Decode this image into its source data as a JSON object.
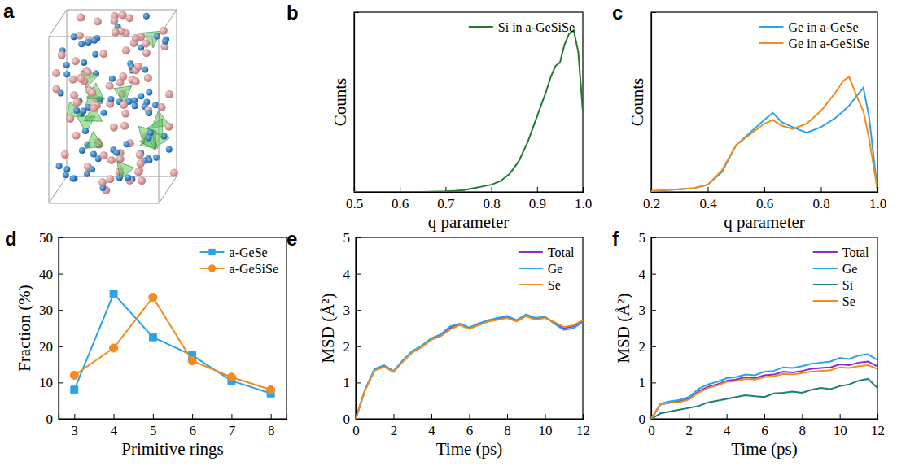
{
  "chart_data": [
    {
      "panel": "a",
      "type": "illustration"
    },
    {
      "panel": "b",
      "type": "line",
      "xlabel": "q parameter",
      "ylabel": "Counts",
      "x": [
        0.5,
        0.55,
        0.6,
        0.65,
        0.7,
        0.72,
        0.74,
        0.76,
        0.78,
        0.8,
        0.82,
        0.84,
        0.86,
        0.88,
        0.9,
        0.92,
        0.93,
        0.94,
        0.95,
        0.96,
        0.97,
        0.98,
        0.99,
        1.0
      ],
      "series": [
        {
          "name": "Si in a-GeSiSe",
          "color": "#237a2e",
          "values": [
            0,
            0,
            0,
            0,
            0.003,
            0.006,
            0.01,
            0.02,
            0.03,
            0.04,
            0.06,
            0.1,
            0.17,
            0.28,
            0.42,
            0.56,
            0.64,
            0.7,
            0.72,
            0.82,
            0.88,
            0.9,
            0.78,
            0.45
          ]
        }
      ],
      "xlim": [
        0.5,
        1.0
      ],
      "ylim": [
        0,
        1
      ],
      "xticks": [
        0.5,
        0.6,
        0.7,
        0.8,
        0.9,
        {
          "value": 1,
          "label": "1.0"
        }
      ],
      "yticks": [],
      "tick_labels": "x",
      "legend": "upper right",
      "grid": false
    },
    {
      "panel": "c",
      "type": "line",
      "xlabel": "q parameter",
      "ylabel": "Counts",
      "x": [
        0.2,
        0.25,
        0.3,
        0.35,
        0.4,
        0.45,
        0.5,
        0.55,
        0.6,
        0.63,
        0.66,
        0.7,
        0.75,
        0.8,
        0.85,
        0.88,
        0.9,
        0.93,
        0.95,
        0.97,
        1.0
      ],
      "series": [
        {
          "name": "Ge in a-GeSe",
          "color": "#2aa3e8",
          "values": [
            0.005,
            0.01,
            0.015,
            0.02,
            0.04,
            0.11,
            0.26,
            0.33,
            0.4,
            0.44,
            0.39,
            0.36,
            0.33,
            0.36,
            0.41,
            0.45,
            0.48,
            0.54,
            0.58,
            0.42,
            0.01
          ]
        },
        {
          "name": "Ge in a-GeSiSe",
          "color": "#f28c1e",
          "values": [
            0.005,
            0.01,
            0.015,
            0.02,
            0.04,
            0.12,
            0.26,
            0.32,
            0.38,
            0.4,
            0.37,
            0.35,
            0.38,
            0.45,
            0.55,
            0.62,
            0.64,
            0.52,
            0.45,
            0.3,
            0.01
          ]
        }
      ],
      "xlim": [
        0.2,
        1.0
      ],
      "ylim": [
        0,
        1
      ],
      "xticks": [
        0.2,
        0.4,
        0.6,
        0.8,
        {
          "value": 1,
          "label": "1.0"
        }
      ],
      "yticks": [],
      "tick_labels": "x",
      "legend": "upper right",
      "grid": false
    },
    {
      "panel": "d",
      "type": "line",
      "xlabel": "Primitive rings",
      "ylabel": "Fraction (%)",
      "x": [
        3,
        4,
        5,
        6,
        7,
        8
      ],
      "series": [
        {
          "name": "a-GeSe",
          "color": "#2aa3e8",
          "marker": "square",
          "values": [
            8,
            34.5,
            22.5,
            17.5,
            10.5,
            7
          ]
        },
        {
          "name": "a-GeSiSe",
          "color": "#f28c1e",
          "marker": "circle",
          "values": [
            12,
            19.5,
            33.5,
            16,
            11.5,
            8
          ]
        }
      ],
      "xlim": [
        2.6,
        8.4
      ],
      "ylim": [
        0,
        50
      ],
      "xticks": [
        3,
        4,
        5,
        6,
        7,
        8
      ],
      "yticks": [
        0,
        10,
        20,
        30,
        40,
        50
      ],
      "legend": "upper right",
      "grid": false
    },
    {
      "panel": "e",
      "type": "line",
      "xlabel": "Time (ps)",
      "ylabel": "MSD (Å²)",
      "x": [
        0,
        0.5,
        1,
        1.5,
        2,
        2.5,
        3,
        3.5,
        4,
        4.5,
        5,
        5.5,
        6,
        6.5,
        7,
        7.5,
        8,
        8.5,
        9,
        9.5,
        10,
        10.5,
        11,
        11.5,
        12
      ],
      "series": [
        {
          "name": "Total",
          "color": "#8e2bd6",
          "values": [
            0,
            0.8,
            1.35,
            1.45,
            1.3,
            1.6,
            1.85,
            2.0,
            2.2,
            2.3,
            2.5,
            2.6,
            2.5,
            2.6,
            2.7,
            2.75,
            2.8,
            2.7,
            2.85,
            2.75,
            2.8,
            2.65,
            2.5,
            2.55,
            2.7
          ]
        },
        {
          "name": "Ge",
          "color": "#2aa3e8",
          "values": [
            0,
            0.82,
            1.38,
            1.48,
            1.32,
            1.62,
            1.87,
            2.02,
            2.22,
            2.33,
            2.55,
            2.62,
            2.52,
            2.63,
            2.72,
            2.78,
            2.84,
            2.72,
            2.88,
            2.78,
            2.82,
            2.62,
            2.45,
            2.5,
            2.66
          ]
        },
        {
          "name": "Se",
          "color": "#f28c1e",
          "values": [
            0,
            0.79,
            1.33,
            1.43,
            1.29,
            1.58,
            1.83,
            1.98,
            2.18,
            2.28,
            2.47,
            2.58,
            2.48,
            2.58,
            2.68,
            2.73,
            2.78,
            2.68,
            2.83,
            2.73,
            2.78,
            2.67,
            2.53,
            2.58,
            2.72
          ]
        }
      ],
      "xlim": [
        0,
        12
      ],
      "ylim": [
        0,
        5
      ],
      "xticks": [
        0,
        2,
        4,
        6,
        8,
        10,
        12
      ],
      "yticks": [
        0,
        1,
        2,
        3,
        4,
        5
      ],
      "legend": "upper right",
      "grid": false
    },
    {
      "panel": "f",
      "type": "line",
      "xlabel": "Time (ps)",
      "ylabel": "MSD (Å²)",
      "x": [
        0,
        0.5,
        1,
        1.5,
        2,
        2.5,
        3,
        3.5,
        4,
        4.5,
        5,
        5.5,
        6,
        6.5,
        7,
        7.5,
        8,
        8.5,
        9,
        9.5,
        10,
        10.5,
        11,
        11.5,
        12
      ],
      "series": [
        {
          "name": "Total",
          "color": "#8e2bd6",
          "values": [
            0,
            0.4,
            0.45,
            0.48,
            0.55,
            0.75,
            0.88,
            0.95,
            1.05,
            1.08,
            1.15,
            1.12,
            1.2,
            1.22,
            1.3,
            1.28,
            1.32,
            1.38,
            1.4,
            1.42,
            1.5,
            1.48,
            1.55,
            1.58,
            1.45
          ]
        },
        {
          "name": "Ge",
          "color": "#2aa3e8",
          "values": [
            0,
            0.42,
            0.48,
            0.52,
            0.6,
            0.82,
            0.95,
            1.02,
            1.12,
            1.15,
            1.22,
            1.2,
            1.3,
            1.32,
            1.42,
            1.4,
            1.45,
            1.52,
            1.55,
            1.58,
            1.68,
            1.65,
            1.75,
            1.78,
            1.62
          ]
        },
        {
          "name": "Si",
          "color": "#1f7f74",
          "values": [
            0,
            0.15,
            0.2,
            0.25,
            0.3,
            0.35,
            0.45,
            0.5,
            0.55,
            0.6,
            0.65,
            0.62,
            0.6,
            0.7,
            0.72,
            0.75,
            0.72,
            0.8,
            0.85,
            0.82,
            0.9,
            0.95,
            1.05,
            1.1,
            0.85
          ]
        },
        {
          "name": "Se",
          "color": "#f28c1e",
          "values": [
            0,
            0.4,
            0.44,
            0.46,
            0.53,
            0.72,
            0.85,
            0.92,
            1.02,
            1.04,
            1.1,
            1.08,
            1.15,
            1.17,
            1.24,
            1.22,
            1.26,
            1.3,
            1.32,
            1.34,
            1.42,
            1.4,
            1.45,
            1.48,
            1.38
          ]
        }
      ],
      "xlim": [
        0,
        12
      ],
      "ylim": [
        0,
        5
      ],
      "xticks": [
        0,
        2,
        4,
        6,
        8,
        10,
        12
      ],
      "yticks": [
        0,
        1,
        2,
        3,
        4,
        5
      ],
      "legend": "upper right",
      "grid": false
    }
  ]
}
